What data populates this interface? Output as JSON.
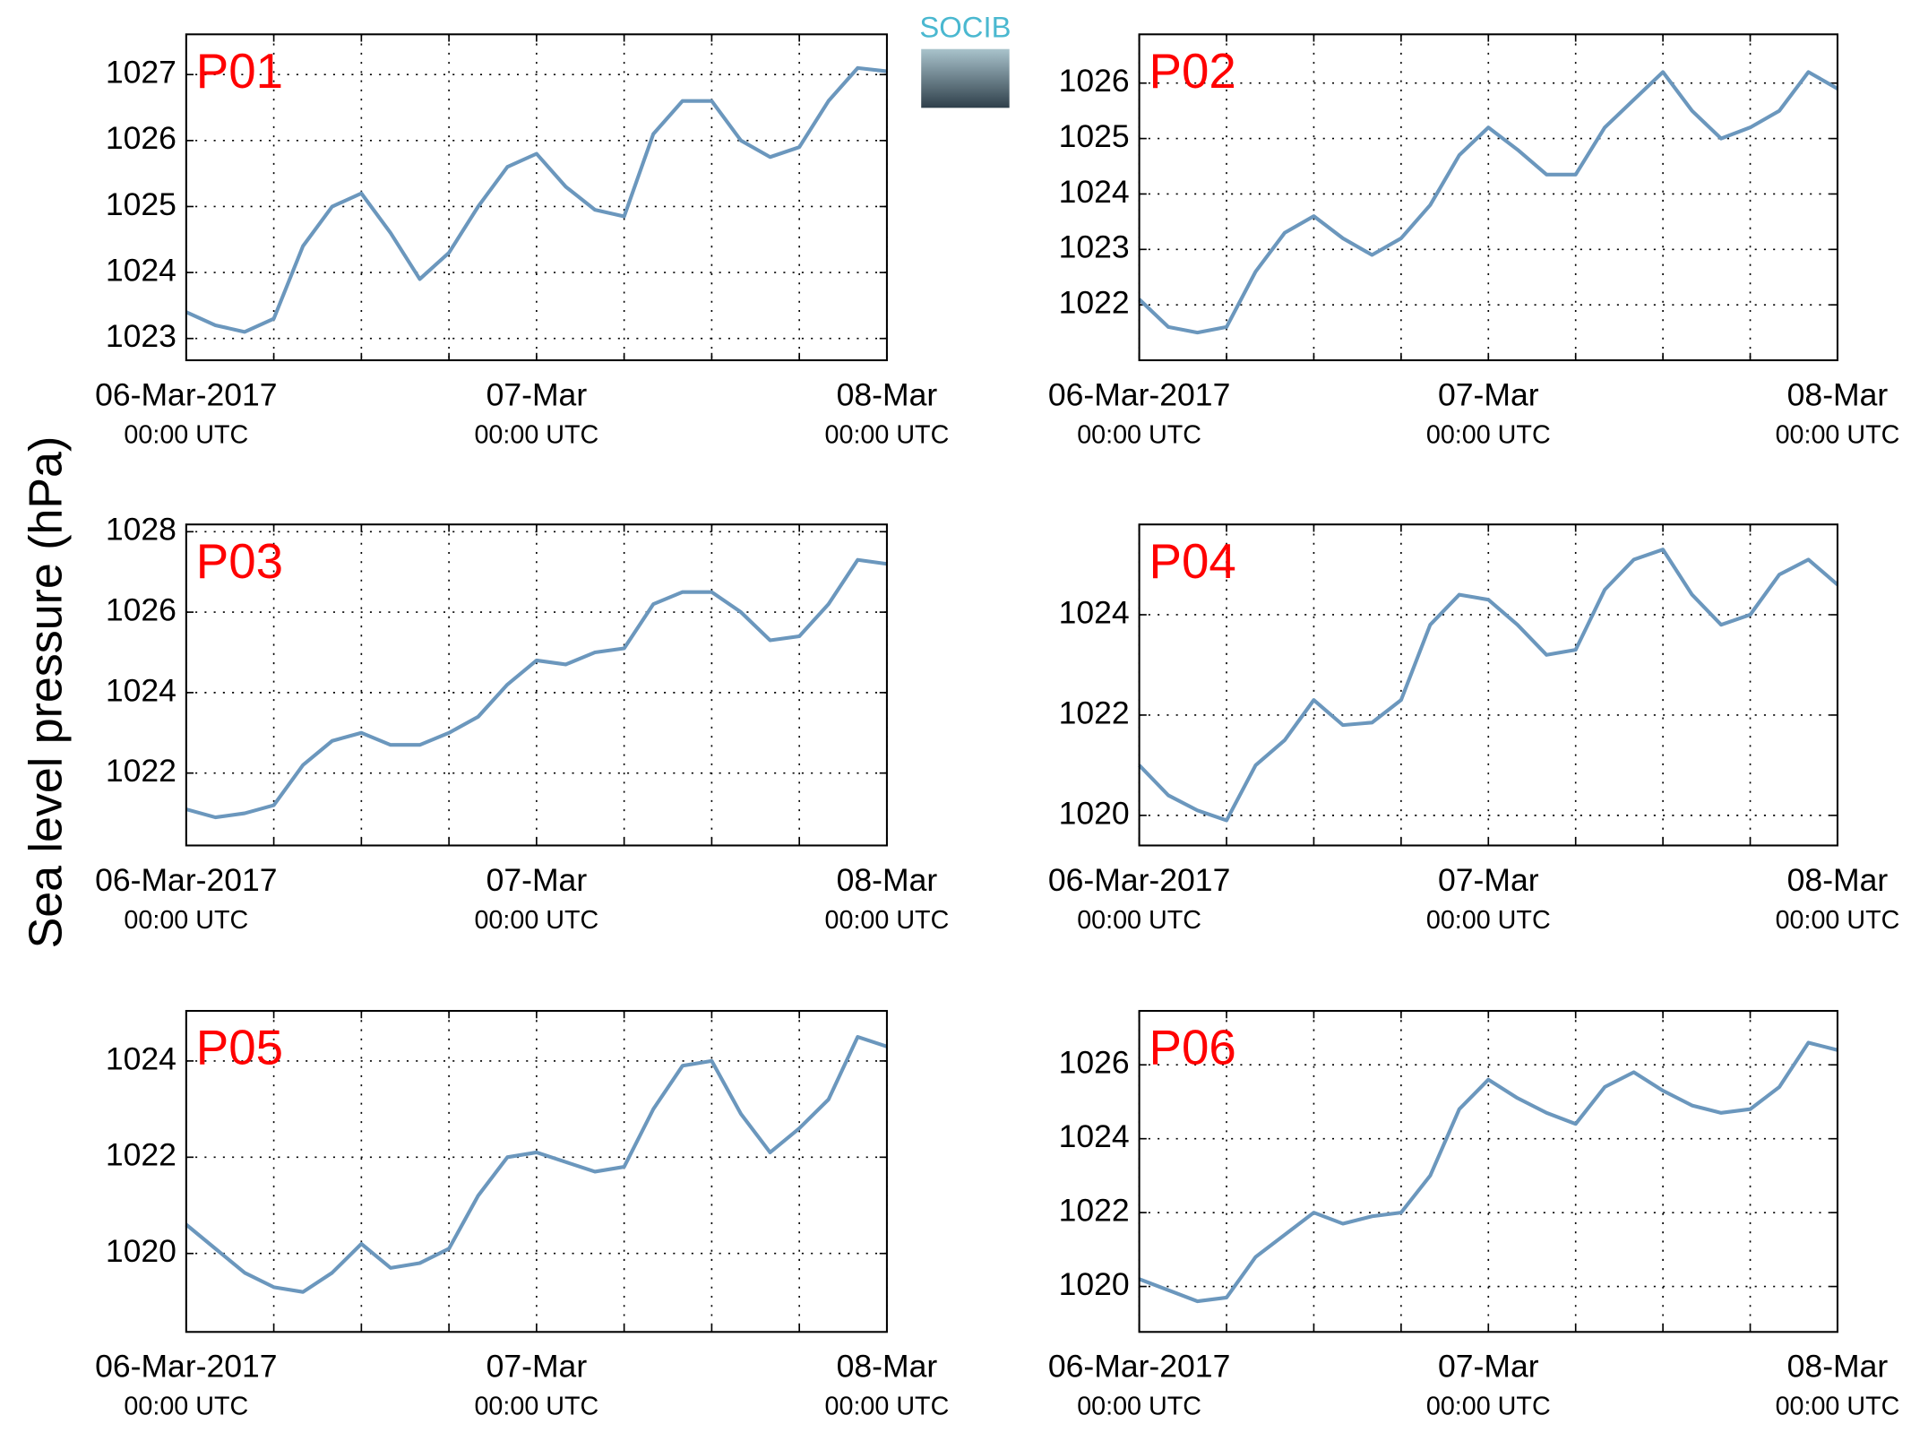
{
  "y_label": "Sea level pressure (hPa)",
  "logo": {
    "text": "SOCIB"
  },
  "chart_data": [
    {
      "type": "line",
      "title": "P01",
      "xlim": [
        0,
        48
      ],
      "ylim": [
        1022.67,
        1027.61
      ],
      "yticks": [
        1023,
        1024,
        1025,
        1026,
        1027
      ],
      "grid": true,
      "xticks": [
        {
          "value": 0,
          "label": "06-Mar-2017"
        },
        {
          "value": 24,
          "label": "07-Mar"
        },
        {
          "value": 48,
          "label": "08-Mar"
        }
      ],
      "xtick_sublabels": [
        "00:00 UTC",
        "00:00 UTC",
        "00:00 UTC"
      ],
      "minor_xticks": [
        6,
        12,
        18,
        30,
        36,
        42
      ],
      "x": [
        0,
        2,
        4,
        6,
        8,
        10,
        12,
        14,
        16,
        18,
        20,
        22,
        24,
        26,
        28,
        30,
        32,
        34,
        36,
        38,
        40,
        42,
        44,
        46,
        48
      ],
      "series": [
        {
          "color": "#6b97bd",
          "values": [
            1023.4,
            1023.2,
            1023.1,
            1023.3,
            1024.4,
            1025.0,
            1025.2,
            1024.6,
            1023.9,
            1024.3,
            1025.0,
            1025.6,
            1025.8,
            1025.3,
            1024.95,
            1024.85,
            1026.1,
            1026.6,
            1026.6,
            1026.0,
            1025.75,
            1025.9,
            1026.6,
            1027.1,
            1027.05
          ]
        }
      ]
    },
    {
      "type": "line",
      "title": "P02",
      "xlim": [
        0,
        48
      ],
      "ylim": [
        1021.0,
        1026.88
      ],
      "yticks": [
        1022,
        1023,
        1024,
        1025,
        1026
      ],
      "grid": true,
      "xticks": [
        {
          "value": 0,
          "label": "06-Mar-2017"
        },
        {
          "value": 24,
          "label": "07-Mar"
        },
        {
          "value": 48,
          "label": "08-Mar"
        }
      ],
      "xtick_sublabels": [
        "00:00 UTC",
        "00:00 UTC",
        "00:00 UTC"
      ],
      "minor_xticks": [
        6,
        12,
        18,
        30,
        36,
        42
      ],
      "x": [
        0,
        2,
        4,
        6,
        8,
        10,
        12,
        14,
        16,
        18,
        20,
        22,
        24,
        26,
        28,
        30,
        32,
        34,
        36,
        38,
        40,
        42,
        44,
        46,
        48
      ],
      "series": [
        {
          "color": "#6b97bd",
          "values": [
            1022.1,
            1021.6,
            1021.5,
            1021.6,
            1022.6,
            1023.3,
            1023.6,
            1023.2,
            1022.9,
            1023.2,
            1023.8,
            1024.7,
            1025.2,
            1024.8,
            1024.35,
            1024.35,
            1025.2,
            1025.7,
            1026.2,
            1025.5,
            1025.0,
            1025.2,
            1025.5,
            1026.2,
            1025.9
          ]
        }
      ]
    },
    {
      "type": "line",
      "title": "P03",
      "xlim": [
        0,
        48
      ],
      "ylim": [
        1020.2,
        1028.18
      ],
      "yticks": [
        1022,
        1024,
        1026,
        1028
      ],
      "grid": true,
      "xticks": [
        {
          "value": 0,
          "label": "06-Mar-2017"
        },
        {
          "value": 24,
          "label": "07-Mar"
        },
        {
          "value": 48,
          "label": "08-Mar"
        }
      ],
      "xtick_sublabels": [
        "00:00 UTC",
        "00:00 UTC",
        "00:00 UTC"
      ],
      "minor_xticks": [
        6,
        12,
        18,
        30,
        36,
        42
      ],
      "x": [
        0,
        2,
        4,
        6,
        8,
        10,
        12,
        14,
        16,
        18,
        20,
        22,
        24,
        26,
        28,
        30,
        32,
        34,
        36,
        38,
        40,
        42,
        44,
        46,
        48
      ],
      "series": [
        {
          "color": "#6b97bd",
          "values": [
            1021.1,
            1020.9,
            1021.0,
            1021.2,
            1022.2,
            1022.8,
            1023.0,
            1022.7,
            1022.7,
            1023.0,
            1023.4,
            1024.2,
            1024.8,
            1024.7,
            1025.0,
            1025.1,
            1026.2,
            1026.5,
            1026.5,
            1026.0,
            1025.3,
            1025.4,
            1026.2,
            1027.3,
            1027.2
          ]
        }
      ]
    },
    {
      "type": "line",
      "title": "P04",
      "xlim": [
        0,
        48
      ],
      "ylim": [
        1019.4,
        1025.8
      ],
      "yticks": [
        1020,
        1022,
        1024
      ],
      "grid": true,
      "xticks": [
        {
          "value": 0,
          "label": "06-Mar-2017"
        },
        {
          "value": 24,
          "label": "07-Mar"
        },
        {
          "value": 48,
          "label": "08-Mar"
        }
      ],
      "xtick_sublabels": [
        "00:00 UTC",
        "00:00 UTC",
        "00:00 UTC"
      ],
      "minor_xticks": [
        6,
        12,
        18,
        30,
        36,
        42
      ],
      "x": [
        0,
        2,
        4,
        6,
        8,
        10,
        12,
        14,
        16,
        18,
        20,
        22,
        24,
        26,
        28,
        30,
        32,
        34,
        36,
        38,
        40,
        42,
        44,
        46,
        48
      ],
      "series": [
        {
          "color": "#6b97bd",
          "values": [
            1021.0,
            1020.4,
            1020.1,
            1019.9,
            1021.0,
            1021.5,
            1022.3,
            1021.8,
            1021.85,
            1022.3,
            1023.8,
            1024.4,
            1024.3,
            1023.8,
            1023.2,
            1023.3,
            1024.5,
            1025.1,
            1025.3,
            1024.4,
            1023.8,
            1024.0,
            1024.8,
            1025.1,
            1024.6
          ]
        }
      ]
    },
    {
      "type": "line",
      "title": "P05",
      "xlim": [
        0,
        48
      ],
      "ylim": [
        1018.37,
        1025.04
      ],
      "yticks": [
        1020,
        1022,
        1024
      ],
      "grid": true,
      "xticks": [
        {
          "value": 0,
          "label": "06-Mar-2017"
        },
        {
          "value": 24,
          "label": "07-Mar"
        },
        {
          "value": 48,
          "label": "08-Mar"
        }
      ],
      "xtick_sublabels": [
        "00:00 UTC",
        "00:00 UTC",
        "00:00 UTC"
      ],
      "minor_xticks": [
        6,
        12,
        18,
        30,
        36,
        42
      ],
      "x": [
        0,
        2,
        4,
        6,
        8,
        10,
        12,
        14,
        16,
        18,
        20,
        22,
        24,
        26,
        28,
        30,
        32,
        34,
        36,
        38,
        40,
        42,
        44,
        46,
        48
      ],
      "series": [
        {
          "color": "#6b97bd",
          "values": [
            1020.6,
            1020.1,
            1019.6,
            1019.3,
            1019.2,
            1019.6,
            1020.2,
            1019.7,
            1019.8,
            1020.1,
            1021.2,
            1022.0,
            1022.1,
            1021.9,
            1021.7,
            1021.8,
            1023.0,
            1023.9,
            1024.0,
            1022.9,
            1022.1,
            1022.6,
            1023.2,
            1024.5,
            1024.3
          ]
        }
      ]
    },
    {
      "type": "line",
      "title": "P06",
      "xlim": [
        0,
        48
      ],
      "ylim": [
        1018.77,
        1027.46
      ],
      "yticks": [
        1020,
        1022,
        1024,
        1026
      ],
      "grid": true,
      "xticks": [
        {
          "value": 0,
          "label": "06-Mar-2017"
        },
        {
          "value": 24,
          "label": "07-Mar"
        },
        {
          "value": 48,
          "label": "08-Mar"
        }
      ],
      "xtick_sublabels": [
        "00:00 UTC",
        "00:00 UTC",
        "00:00 UTC"
      ],
      "minor_xticks": [
        6,
        12,
        18,
        30,
        36,
        42
      ],
      "x": [
        0,
        2,
        4,
        6,
        8,
        10,
        12,
        14,
        16,
        18,
        20,
        22,
        24,
        26,
        28,
        30,
        32,
        34,
        36,
        38,
        40,
        42,
        44,
        46,
        48
      ],
      "series": [
        {
          "color": "#6b97bd",
          "values": [
            1020.2,
            1019.9,
            1019.6,
            1019.7,
            1020.8,
            1021.4,
            1022.0,
            1021.7,
            1021.9,
            1022.0,
            1023.0,
            1024.8,
            1025.6,
            1025.1,
            1024.7,
            1024.4,
            1025.4,
            1025.8,
            1025.3,
            1024.9,
            1024.7,
            1024.8,
            1025.4,
            1026.6,
            1026.4
          ]
        }
      ]
    }
  ]
}
